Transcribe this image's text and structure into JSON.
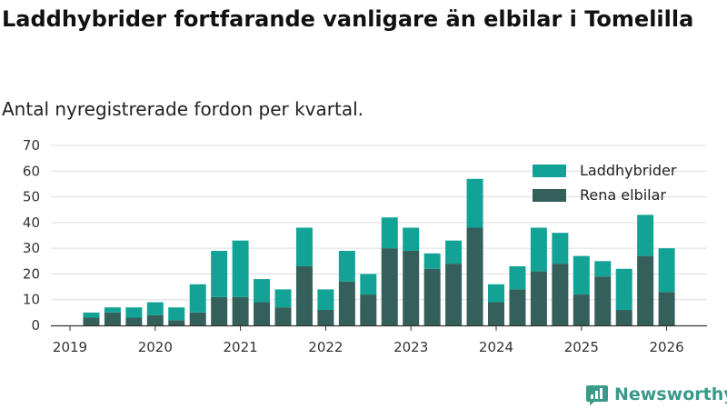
{
  "title": "Laddhybrider fortfarande vanligare än elbilar i Tomelilla",
  "subtitle": "Antal nyregistrerade fordon per kvartal.",
  "brand": {
    "name": "Newsworthy"
  },
  "colors": {
    "hybrid": "#13a396",
    "electric": "#355f5b",
    "grid": "#dddddd",
    "axis": "#333333"
  },
  "chart_data": {
    "type": "bar",
    "stacked": true,
    "categories": [
      "2019 Q2",
      "2019 Q3",
      "2019 Q4",
      "2020 Q1",
      "2020 Q2",
      "2020 Q3",
      "2020 Q4",
      "2021 Q1",
      "2021 Q2",
      "2021 Q3",
      "2021 Q4",
      "2022 Q1",
      "2022 Q2",
      "2022 Q3",
      "2022 Q4",
      "2023 Q1",
      "2023 Q2",
      "2023 Q3",
      "2023 Q4",
      "2024 Q1",
      "2024 Q2",
      "2024 Q3",
      "2024 Q4",
      "2025 Q1",
      "2025 Q2",
      "2025 Q3",
      "2025 Q4",
      "2026 Q1"
    ],
    "series": [
      {
        "name": "Rena elbilar",
        "values": [
          3,
          5,
          3,
          4,
          2,
          5,
          11,
          11,
          9,
          7,
          23,
          6,
          17,
          12,
          30,
          29,
          22,
          24,
          38,
          9,
          14,
          21,
          24,
          12,
          19,
          6,
          27,
          13
        ]
      },
      {
        "name": "Laddhybrider",
        "values": [
          2,
          2,
          4,
          5,
          5,
          11,
          18,
          22,
          9,
          7,
          15,
          8,
          12,
          8,
          12,
          9,
          6,
          9,
          19,
          7,
          9,
          17,
          12,
          15,
          6,
          16,
          16,
          17
        ]
      }
    ],
    "yticks": [
      "0",
      "10",
      "20",
      "30",
      "40",
      "50",
      "60",
      "70"
    ],
    "xticks": [
      "2019",
      "2020",
      "2021",
      "2022",
      "2023",
      "2024",
      "2025",
      "2026"
    ],
    "ylim": [
      0,
      70
    ],
    "legend": [
      "Laddhybrider",
      "Rena elbilar"
    ],
    "legend_position": "top-right"
  }
}
